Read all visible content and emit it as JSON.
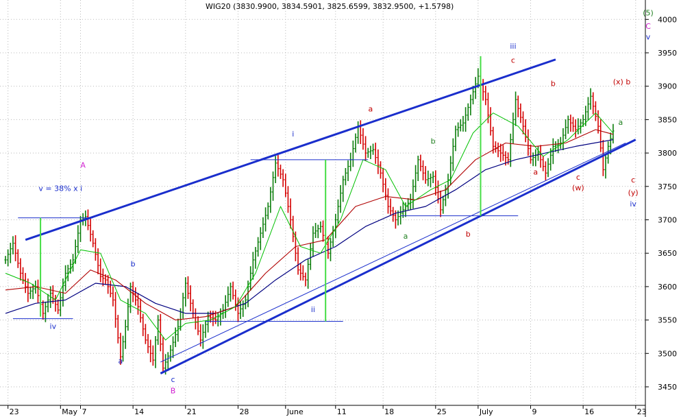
{
  "chart_data": {
    "type": "candlestick",
    "title": "WIG20 (3830.9900, 3834.5901, 3825.6599, 3832.9500, +1.5798)",
    "ylim": [
      3420,
      4025
    ],
    "yticks": [
      3450,
      3500,
      3550,
      3600,
      3650,
      3700,
      3750,
      3800,
      3850,
      3900,
      3950,
      4000
    ],
    "xticks": [
      "23",
      "May",
      "7",
      "14",
      "21",
      "28",
      "June",
      "11",
      "18",
      "25",
      "July",
      "9",
      "16",
      "23"
    ],
    "grid": true,
    "colors": {
      "up": "#0a7d0a",
      "down": "#d40000",
      "ma_fast": "#00c000",
      "ma_mid": "#b00000",
      "ma_slow": "#000080",
      "channel": "#1a2ecc",
      "level": "#1a2ecc",
      "impulse": "#44dd44"
    },
    "close_path": [
      {
        "d": 0,
        "y": 3640
      },
      {
        "d": 3,
        "y": 3665
      },
      {
        "d": 6,
        "y": 3620
      },
      {
        "d": 9,
        "y": 3590
      },
      {
        "d": 12,
        "y": 3600
      },
      {
        "d": 15,
        "y": 3560
      },
      {
        "d": 18,
        "y": 3590
      },
      {
        "d": 21,
        "y": 3565
      },
      {
        "d": 24,
        "y": 3620
      },
      {
        "d": 27,
        "y": 3640
      },
      {
        "d": 30,
        "y": 3700
      },
      {
        "d": 32,
        "y": 3705
      },
      {
        "d": 35,
        "y": 3665
      },
      {
        "d": 38,
        "y": 3615
      },
      {
        "d": 40,
        "y": 3610
      },
      {
        "d": 43,
        "y": 3580
      },
      {
        "d": 46,
        "y": 3495
      },
      {
        "d": 48,
        "y": 3540
      },
      {
        "d": 50,
        "y": 3600
      },
      {
        "d": 53,
        "y": 3570
      },
      {
        "d": 56,
        "y": 3520
      },
      {
        "d": 59,
        "y": 3490
      },
      {
        "d": 61,
        "y": 3550
      },
      {
        "d": 63,
        "y": 3478
      },
      {
        "d": 66,
        "y": 3505
      },
      {
        "d": 69,
        "y": 3540
      },
      {
        "d": 72,
        "y": 3605
      },
      {
        "d": 75,
        "y": 3560
      },
      {
        "d": 78,
        "y": 3520
      },
      {
        "d": 81,
        "y": 3555
      },
      {
        "d": 84,
        "y": 3550
      },
      {
        "d": 87,
        "y": 3565
      },
      {
        "d": 90,
        "y": 3600
      },
      {
        "d": 93,
        "y": 3560
      },
      {
        "d": 96,
        "y": 3580
      },
      {
        "d": 99,
        "y": 3640
      },
      {
        "d": 102,
        "y": 3680
      },
      {
        "d": 105,
        "y": 3720
      },
      {
        "d": 108,
        "y": 3785
      },
      {
        "d": 111,
        "y": 3760
      },
      {
        "d": 114,
        "y": 3700
      },
      {
        "d": 117,
        "y": 3625
      },
      {
        "d": 120,
        "y": 3610
      },
      {
        "d": 123,
        "y": 3680
      },
      {
        "d": 126,
        "y": 3690
      },
      {
        "d": 129,
        "y": 3650
      },
      {
        "d": 132,
        "y": 3700
      },
      {
        "d": 135,
        "y": 3760
      },
      {
        "d": 138,
        "y": 3790
      },
      {
        "d": 141,
        "y": 3840
      },
      {
        "d": 144,
        "y": 3800
      },
      {
        "d": 147,
        "y": 3805
      },
      {
        "d": 150,
        "y": 3770
      },
      {
        "d": 153,
        "y": 3720
      },
      {
        "d": 156,
        "y": 3700
      },
      {
        "d": 159,
        "y": 3715
      },
      {
        "d": 162,
        "y": 3730
      },
      {
        "d": 165,
        "y": 3790
      },
      {
        "d": 168,
        "y": 3760
      },
      {
        "d": 171,
        "y": 3765
      },
      {
        "d": 174,
        "y": 3715
      },
      {
        "d": 177,
        "y": 3760
      },
      {
        "d": 180,
        "y": 3835
      },
      {
        "d": 183,
        "y": 3845
      },
      {
        "d": 186,
        "y": 3880
      },
      {
        "d": 189,
        "y": 3915
      },
      {
        "d": 192,
        "y": 3880
      },
      {
        "d": 195,
        "y": 3810
      },
      {
        "d": 198,
        "y": 3800
      },
      {
        "d": 201,
        "y": 3790
      },
      {
        "d": 204,
        "y": 3880
      },
      {
        "d": 207,
        "y": 3840
      },
      {
        "d": 210,
        "y": 3790
      },
      {
        "d": 213,
        "y": 3800
      },
      {
        "d": 216,
        "y": 3770
      },
      {
        "d": 219,
        "y": 3810
      },
      {
        "d": 222,
        "y": 3815
      },
      {
        "d": 225,
        "y": 3850
      },
      {
        "d": 228,
        "y": 3835
      },
      {
        "d": 231,
        "y": 3850
      },
      {
        "d": 234,
        "y": 3885
      },
      {
        "d": 237,
        "y": 3840
      },
      {
        "d": 239,
        "y": 3775
      },
      {
        "d": 241,
        "y": 3810
      },
      {
        "d": 243,
        "y": 3833
      }
    ],
    "ma_fast": [
      {
        "d": 0,
        "y": 3620
      },
      {
        "d": 10,
        "y": 3605
      },
      {
        "d": 20,
        "y": 3580
      },
      {
        "d": 30,
        "y": 3655
      },
      {
        "d": 38,
        "y": 3650
      },
      {
        "d": 46,
        "y": 3580
      },
      {
        "d": 56,
        "y": 3560
      },
      {
        "d": 64,
        "y": 3520
      },
      {
        "d": 72,
        "y": 3545
      },
      {
        "d": 82,
        "y": 3550
      },
      {
        "d": 92,
        "y": 3570
      },
      {
        "d": 100,
        "y": 3620
      },
      {
        "d": 110,
        "y": 3720
      },
      {
        "d": 118,
        "y": 3660
      },
      {
        "d": 126,
        "y": 3650
      },
      {
        "d": 134,
        "y": 3700
      },
      {
        "d": 143,
        "y": 3790
      },
      {
        "d": 152,
        "y": 3775
      },
      {
        "d": 160,
        "y": 3720
      },
      {
        "d": 170,
        "y": 3745
      },
      {
        "d": 178,
        "y": 3760
      },
      {
        "d": 187,
        "y": 3830
      },
      {
        "d": 195,
        "y": 3860
      },
      {
        "d": 205,
        "y": 3840
      },
      {
        "d": 215,
        "y": 3795
      },
      {
        "d": 225,
        "y": 3820
      },
      {
        "d": 236,
        "y": 3860
      },
      {
        "d": 243,
        "y": 3830
      }
    ],
    "ma_mid": [
      {
        "d": 0,
        "y": 3595
      },
      {
        "d": 12,
        "y": 3600
      },
      {
        "d": 24,
        "y": 3590
      },
      {
        "d": 34,
        "y": 3625
      },
      {
        "d": 44,
        "y": 3610
      },
      {
        "d": 56,
        "y": 3575
      },
      {
        "d": 68,
        "y": 3550
      },
      {
        "d": 80,
        "y": 3555
      },
      {
        "d": 92,
        "y": 3570
      },
      {
        "d": 104,
        "y": 3620
      },
      {
        "d": 116,
        "y": 3660
      },
      {
        "d": 128,
        "y": 3670
      },
      {
        "d": 140,
        "y": 3720
      },
      {
        "d": 152,
        "y": 3735
      },
      {
        "d": 164,
        "y": 3730
      },
      {
        "d": 176,
        "y": 3745
      },
      {
        "d": 188,
        "y": 3790
      },
      {
        "d": 200,
        "y": 3815
      },
      {
        "d": 212,
        "y": 3810
      },
      {
        "d": 224,
        "y": 3815
      },
      {
        "d": 236,
        "y": 3835
      },
      {
        "d": 243,
        "y": 3828
      }
    ],
    "ma_slow": [
      {
        "d": 0,
        "y": 3560
      },
      {
        "d": 12,
        "y": 3575
      },
      {
        "d": 24,
        "y": 3580
      },
      {
        "d": 36,
        "y": 3605
      },
      {
        "d": 48,
        "y": 3600
      },
      {
        "d": 60,
        "y": 3575
      },
      {
        "d": 72,
        "y": 3560
      },
      {
        "d": 84,
        "y": 3560
      },
      {
        "d": 96,
        "y": 3575
      },
      {
        "d": 108,
        "y": 3610
      },
      {
        "d": 120,
        "y": 3640
      },
      {
        "d": 132,
        "y": 3660
      },
      {
        "d": 144,
        "y": 3690
      },
      {
        "d": 156,
        "y": 3710
      },
      {
        "d": 168,
        "y": 3720
      },
      {
        "d": 180,
        "y": 3745
      },
      {
        "d": 192,
        "y": 3775
      },
      {
        "d": 204,
        "y": 3790
      },
      {
        "d": 216,
        "y": 3800
      },
      {
        "d": 228,
        "y": 3810
      },
      {
        "d": 243,
        "y": 3820
      }
    ],
    "channel_lines": [
      {
        "d1": 8,
        "y1": 3670,
        "d2": 220,
        "y2": 3940
      },
      {
        "d1": 62,
        "y1": 3470,
        "d2": 252,
        "y2": 3820
      }
    ],
    "thin_lines": [
      {
        "d1": 62,
        "y1": 3487,
        "d2": 248,
        "y2": 3815
      }
    ],
    "levels": [
      {
        "d1": 5,
        "d2": 35,
        "y": 3703
      },
      {
        "d1": 3,
        "d2": 27,
        "y": 3552
      },
      {
        "d1": 98,
        "d2": 145,
        "y": 3790
      },
      {
        "d1": 80,
        "d2": 135,
        "y": 3548
      },
      {
        "d1": 158,
        "d2": 205,
        "y": 3706
      }
    ],
    "impulse_lines": [
      {
        "d": 14,
        "y1": 3555,
        "y2": 3703
      },
      {
        "d": 128,
        "y1": 3548,
        "y2": 3790
      },
      {
        "d": 190,
        "y1": 3706,
        "y2": 3945
      }
    ],
    "annotations": [
      {
        "text": "(5)",
        "d": 257,
        "y": 4006,
        "color": "#208020"
      },
      {
        "text": "C",
        "d": 257,
        "y": 3986,
        "color": "#d020d0"
      },
      {
        "text": "v",
        "d": 257,
        "y": 3970,
        "color": "#1a2ecc"
      },
      {
        "text": "iii",
        "d": 203,
        "y": 3956,
        "color": "#1a2ecc"
      },
      {
        "text": "c",
        "d": 203,
        "y": 3935,
        "color": "#c00000"
      },
      {
        "text": "b",
        "d": 219,
        "y": 3900,
        "color": "#c00000"
      },
      {
        "text": "(x)",
        "d": 245,
        "y": 3903,
        "color": "#c00000"
      },
      {
        "text": "b",
        "d": 249,
        "y": 3903,
        "color": "#c00000"
      },
      {
        "text": "a",
        "d": 146,
        "y": 3862,
        "color": "#c00000"
      },
      {
        "text": "a",
        "d": 246,
        "y": 3842,
        "color": "#208020"
      },
      {
        "text": "i",
        "d": 115,
        "y": 3825,
        "color": "#1a2ecc"
      },
      {
        "text": "b",
        "d": 171,
        "y": 3814,
        "color": "#208020"
      },
      {
        "text": "A",
        "d": 31,
        "y": 3778,
        "color": "#d020d0"
      },
      {
        "text": "a",
        "d": 212,
        "y": 3768,
        "color": "#c00000"
      },
      {
        "text": "c",
        "d": 229,
        "y": 3760,
        "color": "#c00000"
      },
      {
        "text": "c",
        "d": 251,
        "y": 3756,
        "color": "#c00000"
      },
      {
        "text": "(w)",
        "d": 229,
        "y": 3744,
        "color": "#c00000"
      },
      {
        "text": "v = 38% x i",
        "d": 22,
        "y": 3743,
        "color": "#1a2ecc"
      },
      {
        "text": "(y)",
        "d": 251,
        "y": 3737,
        "color": "#c00000"
      },
      {
        "text": "iv",
        "d": 251,
        "y": 3720,
        "color": "#1a2ecc"
      },
      {
        "text": "a",
        "d": 160,
        "y": 3672,
        "color": "#208020"
      },
      {
        "text": "b",
        "d": 185,
        "y": 3675,
        "color": "#c00000"
      },
      {
        "text": "b",
        "d": 51,
        "y": 3630,
        "color": "#1a2ecc"
      },
      {
        "text": "ii",
        "d": 123,
        "y": 3562,
        "color": "#1a2ecc"
      },
      {
        "text": "iv",
        "d": 19,
        "y": 3537,
        "color": "#1a2ecc"
      },
      {
        "text": "a",
        "d": 46,
        "y": 3485,
        "color": "#1a2ecc"
      },
      {
        "text": "c",
        "d": 67,
        "y": 3457,
        "color": "#1a2ecc"
      },
      {
        "text": "B",
        "d": 67,
        "y": 3440,
        "color": "#d020d0"
      }
    ]
  }
}
